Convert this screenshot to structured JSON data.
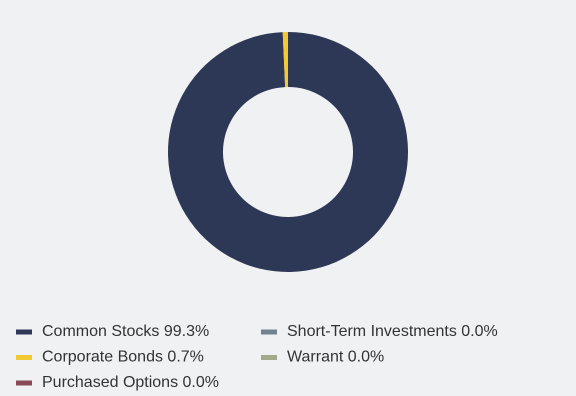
{
  "chart_data": {
    "type": "pie",
    "donut": true,
    "categories": [
      "Common Stocks",
      "Corporate Bonds",
      "Purchased Options",
      "Short-Term Investments",
      "Warrant"
    ],
    "values": [
      99.3,
      0.7,
      0.0,
      0.0,
      0.0
    ],
    "value_labels": [
      "99.3%",
      "0.7%",
      "0.0%",
      "0.0%",
      "0.0%"
    ],
    "colors": [
      "#2d3857",
      "#f2c931",
      "#8b4a57",
      "#73828f",
      "#a4a98a"
    ]
  }
}
